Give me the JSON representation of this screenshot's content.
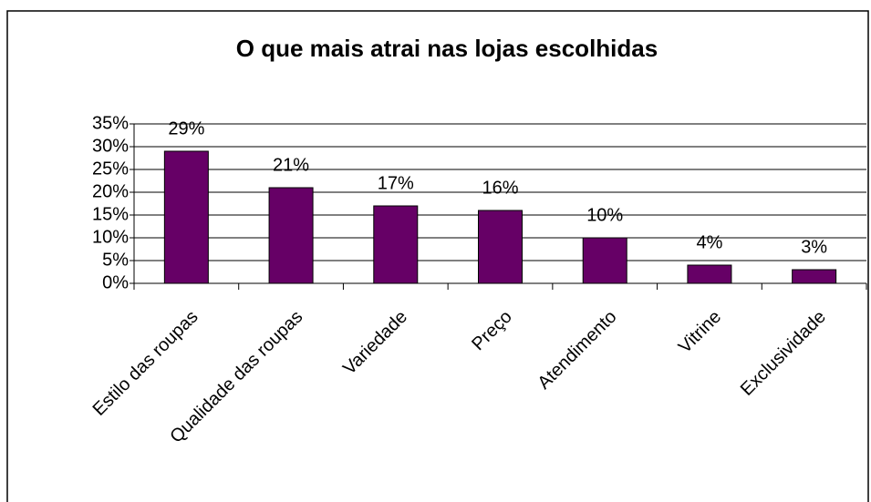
{
  "chart_data": {
    "type": "bar",
    "title": "O que mais atrai nas lojas escolhidas",
    "categories": [
      "Estilo das roupas",
      "Qualidade das roupas",
      "Variedade",
      "Preço",
      "Atendimento",
      "Vitrine",
      "Exclusividade"
    ],
    "values": [
      29,
      21,
      17,
      16,
      10,
      4,
      3
    ],
    "value_labels": [
      "29%",
      "21%",
      "17%",
      "16%",
      "10%",
      "4%",
      "3%"
    ],
    "color": "#660066",
    "ylim": [
      0,
      35
    ],
    "yticks": [
      {
        "value": 0,
        "label": "0%"
      },
      {
        "value": 5,
        "label": "5%"
      },
      {
        "value": 10,
        "label": "10%"
      },
      {
        "value": 15,
        "label": "15%"
      },
      {
        "value": 20,
        "label": "20%"
      },
      {
        "value": 25,
        "label": "25%"
      },
      {
        "value": 30,
        "label": "30%"
      },
      {
        "value": 35,
        "label": "35%"
      }
    ],
    "grid": true
  }
}
